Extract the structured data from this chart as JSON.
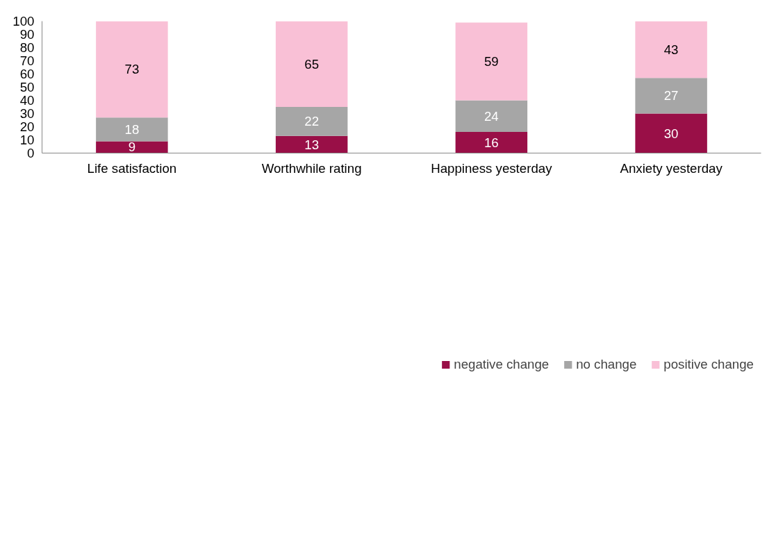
{
  "chart_data": {
    "type": "bar",
    "stacked": true,
    "categories": [
      "Life satisfaction",
      "Worthwhile rating",
      "Happiness yesterday",
      "Anxiety yesterday"
    ],
    "series": [
      {
        "name": "negative change",
        "color": "#990f47",
        "values": [
          9,
          13,
          16,
          30
        ]
      },
      {
        "name": "no change",
        "color": "#a6a6a6",
        "values": [
          18,
          22,
          24,
          27
        ]
      },
      {
        "name": "positive change",
        "color": "#f9c0d6",
        "values": [
          73,
          65,
          59,
          43
        ]
      }
    ],
    "ylim": [
      0,
      100
    ],
    "yticks": [
      0,
      10,
      20,
      30,
      40,
      50,
      60,
      70,
      80,
      90,
      100
    ],
    "grid": false,
    "legend": "bottom",
    "data_labels": true
  }
}
